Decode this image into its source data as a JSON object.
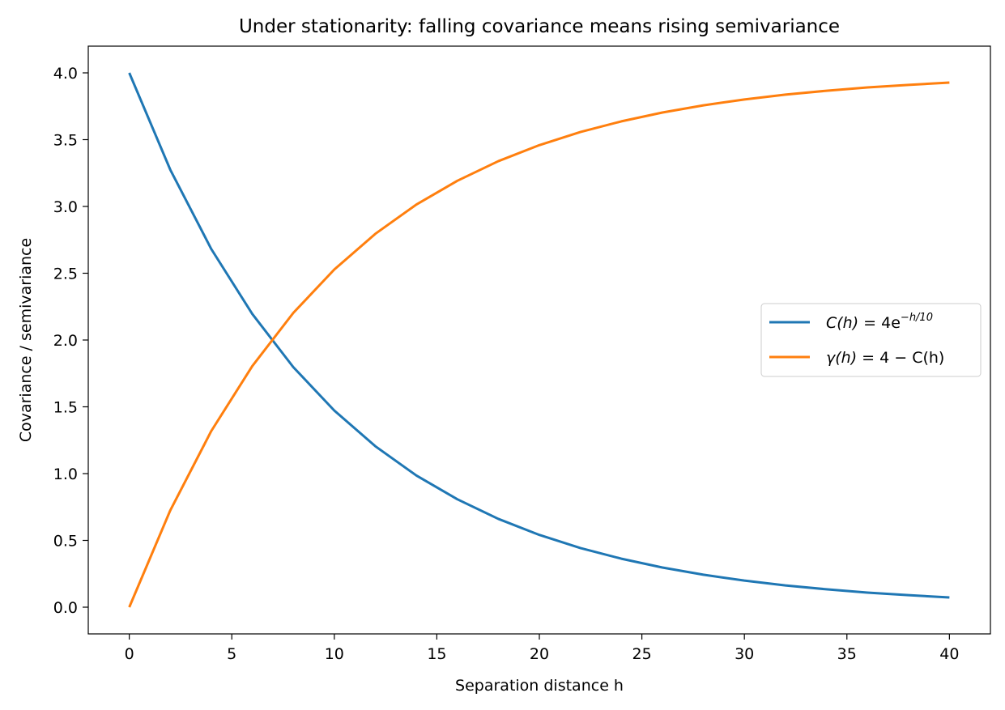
{
  "chart_data": {
    "type": "line",
    "title": "Under stationarity: falling covariance means rising semivariance",
    "xlabel": "Separation distance h",
    "ylabel": "Covariance / semivariance",
    "xlim": [
      -2,
      42
    ],
    "ylim": [
      -0.2,
      4.2
    ],
    "xticks": [
      0,
      5,
      10,
      15,
      20,
      25,
      30,
      35,
      40
    ],
    "yticks": [
      0.0,
      0.5,
      1.0,
      1.5,
      2.0,
      2.5,
      3.0,
      3.5,
      4.0
    ],
    "xtick_labels": [
      "0",
      "5",
      "10",
      "15",
      "20",
      "25",
      "30",
      "35",
      "40"
    ],
    "ytick_labels": [
      "0.0",
      "0.5",
      "1.0",
      "1.5",
      "2.0",
      "2.5",
      "3.0",
      "3.5",
      "4.0"
    ],
    "grid": false,
    "legend_position": "center-right",
    "x": [
      0,
      2,
      4,
      6,
      8,
      10,
      12,
      14,
      16,
      18,
      20,
      22,
      24,
      26,
      28,
      30,
      32,
      34,
      36,
      38,
      40
    ],
    "series": [
      {
        "legend": {
          "fn": "C(h)",
          "eq": " = 4e",
          "sup": "−h/10"
        },
        "color": "#1f77b4",
        "values": [
          4.0,
          3.275,
          2.681,
          2.195,
          1.797,
          1.472,
          1.205,
          0.986,
          0.808,
          0.661,
          0.541,
          0.443,
          0.363,
          0.297,
          0.243,
          0.199,
          0.163,
          0.134,
          0.109,
          0.09,
          0.073
        ]
      },
      {
        "legend": {
          "fn": "γ(h)",
          "eq": " = 4 − C(h)",
          "sup": ""
        },
        "color": "#ff7f0e",
        "values": [
          0.0,
          0.725,
          1.319,
          1.805,
          2.203,
          2.528,
          2.795,
          3.014,
          3.192,
          3.339,
          3.459,
          3.557,
          3.637,
          3.703,
          3.757,
          3.801,
          3.837,
          3.866,
          3.891,
          3.91,
          3.927
        ]
      }
    ]
  }
}
